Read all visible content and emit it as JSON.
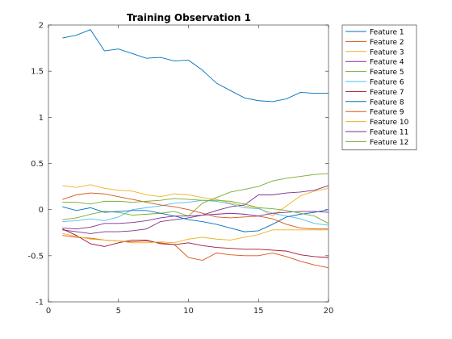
{
  "chart_data": {
    "type": "line",
    "title": "Training Observation 1",
    "xlabel": "",
    "ylabel": "",
    "xlim": [
      0,
      20
    ],
    "ylim": [
      -1,
      2
    ],
    "xticks": [
      "0",
      "5",
      "10",
      "15",
      "20"
    ],
    "yticks": [
      "-1",
      "-0.5",
      "0",
      "0.5",
      "1",
      "1.5",
      "2"
    ],
    "grid": false,
    "legend_position": "top-right outside",
    "x": [
      1,
      2,
      3,
      4,
      5,
      6,
      7,
      8,
      9,
      10,
      11,
      12,
      13,
      14,
      15,
      16,
      17,
      18,
      19,
      20
    ],
    "series": [
      {
        "name": "Feature 1",
        "color": "#0072BD",
        "values": [
          1.86,
          1.89,
          1.95,
          1.72,
          1.74,
          1.69,
          1.64,
          1.65,
          1.61,
          1.62,
          1.51,
          1.37,
          1.29,
          1.21,
          1.18,
          1.17,
          1.2,
          1.27,
          1.26,
          1.26
        ]
      },
      {
        "name": "Feature 2",
        "color": "#D95319",
        "values": [
          -0.28,
          -0.3,
          -0.31,
          -0.33,
          -0.34,
          -0.35,
          -0.34,
          -0.36,
          -0.38,
          -0.52,
          -0.55,
          -0.47,
          -0.49,
          -0.5,
          -0.5,
          -0.47,
          -0.51,
          -0.56,
          -0.6,
          -0.63
        ]
      },
      {
        "name": "Feature 3",
        "color": "#EDB120",
        "values": [
          0.26,
          0.24,
          0.27,
          0.23,
          0.21,
          0.2,
          0.16,
          0.14,
          0.17,
          0.16,
          0.13,
          0.11,
          0.07,
          0.04,
          0.02,
          -0.07,
          0.04,
          0.15,
          0.2,
          0.23
        ]
      },
      {
        "name": "Feature 4",
        "color": "#7E2F8E",
        "values": [
          -0.22,
          -0.24,
          -0.26,
          -0.24,
          -0.24,
          -0.23,
          -0.21,
          -0.13,
          -0.11,
          -0.09,
          -0.06,
          -0.01,
          0.03,
          0.05,
          0.16,
          0.16,
          0.18,
          0.19,
          0.21,
          0.26
        ]
      },
      {
        "name": "Feature 5",
        "color": "#77AC30",
        "values": [
          -0.11,
          -0.09,
          -0.05,
          -0.02,
          -0.03,
          -0.06,
          -0.05,
          -0.04,
          -0.02,
          -0.07,
          0.07,
          0.13,
          0.19,
          0.22,
          0.25,
          0.31,
          0.34,
          0.36,
          0.38,
          0.39
        ]
      },
      {
        "name": "Feature 6",
        "color": "#4DBEEE",
        "values": [
          -0.13,
          -0.12,
          -0.1,
          -0.12,
          -0.08,
          0.0,
          0.02,
          0.04,
          0.07,
          0.08,
          0.1,
          0.09,
          0.06,
          0.02,
          0.01,
          -0.04,
          -0.07,
          -0.1,
          -0.15,
          -0.17
        ]
      },
      {
        "name": "Feature 7",
        "color": "#A2142F",
        "values": [
          -0.21,
          -0.28,
          -0.37,
          -0.4,
          -0.36,
          -0.33,
          -0.33,
          -0.37,
          -0.38,
          -0.36,
          -0.39,
          -0.41,
          -0.42,
          -0.43,
          -0.43,
          -0.44,
          -0.45,
          -0.49,
          -0.51,
          -0.52
        ]
      },
      {
        "name": "Feature 8",
        "color": "#0072BD",
        "values": [
          0.03,
          -0.01,
          0.02,
          -0.03,
          -0.02,
          -0.01,
          -0.01,
          -0.04,
          -0.07,
          -0.11,
          -0.13,
          -0.16,
          -0.2,
          -0.24,
          -0.23,
          -0.16,
          -0.08,
          -0.05,
          -0.03,
          0.0
        ]
      },
      {
        "name": "Feature 9",
        "color": "#D95319",
        "values": [
          0.11,
          0.16,
          0.18,
          0.17,
          0.14,
          0.11,
          0.08,
          0.05,
          0.03,
          0.0,
          -0.04,
          -0.08,
          -0.09,
          -0.08,
          -0.07,
          -0.1,
          -0.16,
          -0.2,
          -0.21,
          -0.21
        ]
      },
      {
        "name": "Feature 10",
        "color": "#EDB120",
        "values": [
          -0.26,
          -0.29,
          -0.32,
          -0.33,
          -0.34,
          -0.36,
          -0.36,
          -0.35,
          -0.36,
          -0.32,
          -0.3,
          -0.32,
          -0.33,
          -0.3,
          -0.27,
          -0.22,
          -0.22,
          -0.22,
          -0.22,
          -0.22
        ]
      },
      {
        "name": "Feature 11",
        "color": "#7E2F8E",
        "values": [
          -0.2,
          -0.21,
          -0.19,
          -0.15,
          -0.15,
          -0.14,
          -0.12,
          -0.09,
          -0.07,
          -0.07,
          -0.06,
          -0.05,
          -0.04,
          -0.05,
          -0.07,
          -0.04,
          -0.03,
          -0.02,
          -0.02,
          -0.03
        ]
      },
      {
        "name": "Feature 12",
        "color": "#77AC30",
        "values": [
          0.08,
          0.08,
          0.06,
          0.09,
          0.09,
          0.08,
          0.09,
          0.1,
          0.12,
          0.11,
          0.1,
          0.1,
          0.09,
          0.06,
          0.02,
          0.01,
          -0.01,
          -0.04,
          -0.07,
          -0.15
        ]
      }
    ]
  }
}
